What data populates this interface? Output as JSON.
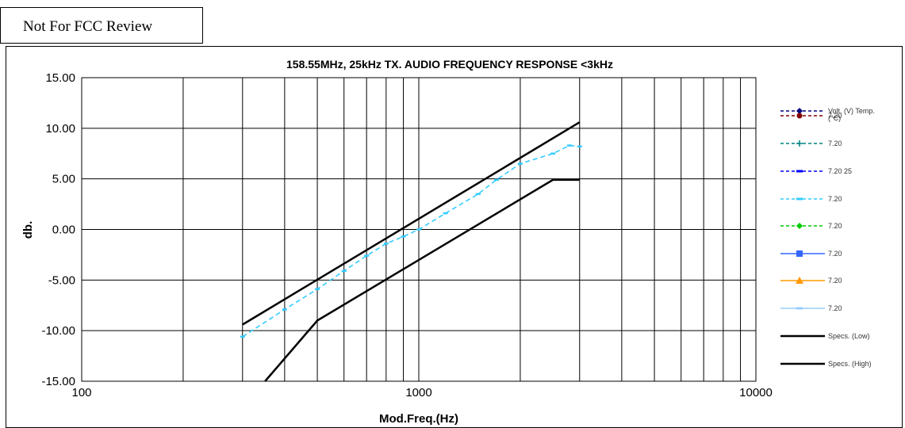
{
  "header": {
    "review_label": "Not For FCC Review"
  },
  "chart_data": {
    "type": "line",
    "title": "158.55MHz, 25kHz TX. AUDIO FREQUENCY RESPONSE <3kHz",
    "xlabel": "Mod.Freq.(Hz)",
    "ylabel": "db.",
    "xscale": "log",
    "xlim": [
      100,
      10000
    ],
    "ylim": [
      -15,
      15
    ],
    "x_ticks": [
      "100",
      "1000",
      "10000"
    ],
    "y_ticks": [
      "15.00",
      "10.00",
      "5.00",
      "0.00",
      "-5.00",
      "-10.00",
      "-15.00"
    ],
    "grid": true,
    "legend_position": "right",
    "series": [
      {
        "name": "Volt. (V) Temp. (°C)",
        "color": "#000080",
        "style": "dashed",
        "marker": "diamond",
        "x": [],
        "y": []
      },
      {
        "name": "7.20",
        "color": "#800000",
        "style": "dashed",
        "marker": "circle",
        "x": [],
        "y": []
      },
      {
        "name": "7.20",
        "color": "#008080",
        "style": "dashed",
        "marker": "plus",
        "x": [],
        "y": []
      },
      {
        "name": "7.20 25",
        "color": "#0000ff",
        "style": "dashed",
        "marker": "dash",
        "x": [],
        "y": []
      },
      {
        "name": "7.20",
        "color": "#33ccff",
        "style": "dashed",
        "marker": "dash",
        "x": [
          300,
          400,
          500,
          600,
          700,
          800,
          900,
          1000,
          1200,
          1500,
          1700,
          2000,
          2500,
          2800,
          3000
        ],
        "y": [
          -10.6,
          -7.9,
          -5.9,
          -4.1,
          -2.6,
          -1.4,
          -0.7,
          0.0,
          1.6,
          3.5,
          4.9,
          6.5,
          7.5,
          8.3,
          8.2
        ]
      },
      {
        "name": "7.20",
        "color": "#00cc00",
        "style": "dashed",
        "marker": "diamond",
        "x": [],
        "y": []
      },
      {
        "name": "7.20",
        "color": "#3366ff",
        "style": "solid",
        "marker": "square",
        "x": [],
        "y": []
      },
      {
        "name": "7.20",
        "color": "#ff9900",
        "style": "solid",
        "marker": "triangle",
        "x": [],
        "y": []
      },
      {
        "name": "7.20",
        "color": "#99ccff",
        "style": "solid",
        "marker": "dash",
        "x": [],
        "y": []
      },
      {
        "name": "Specs. (Low)",
        "color": "#000000",
        "style": "solid",
        "marker": "none",
        "x": [
          300,
          3000
        ],
        "y": [
          -9.4,
          10.6
        ]
      },
      {
        "name": "Specs. (High)",
        "color": "#000000",
        "style": "solid",
        "marker": "none",
        "x": [
          350,
          500,
          2500,
          3000
        ],
        "y": [
          -15.0,
          -9.0,
          4.9,
          4.9
        ]
      }
    ]
  }
}
